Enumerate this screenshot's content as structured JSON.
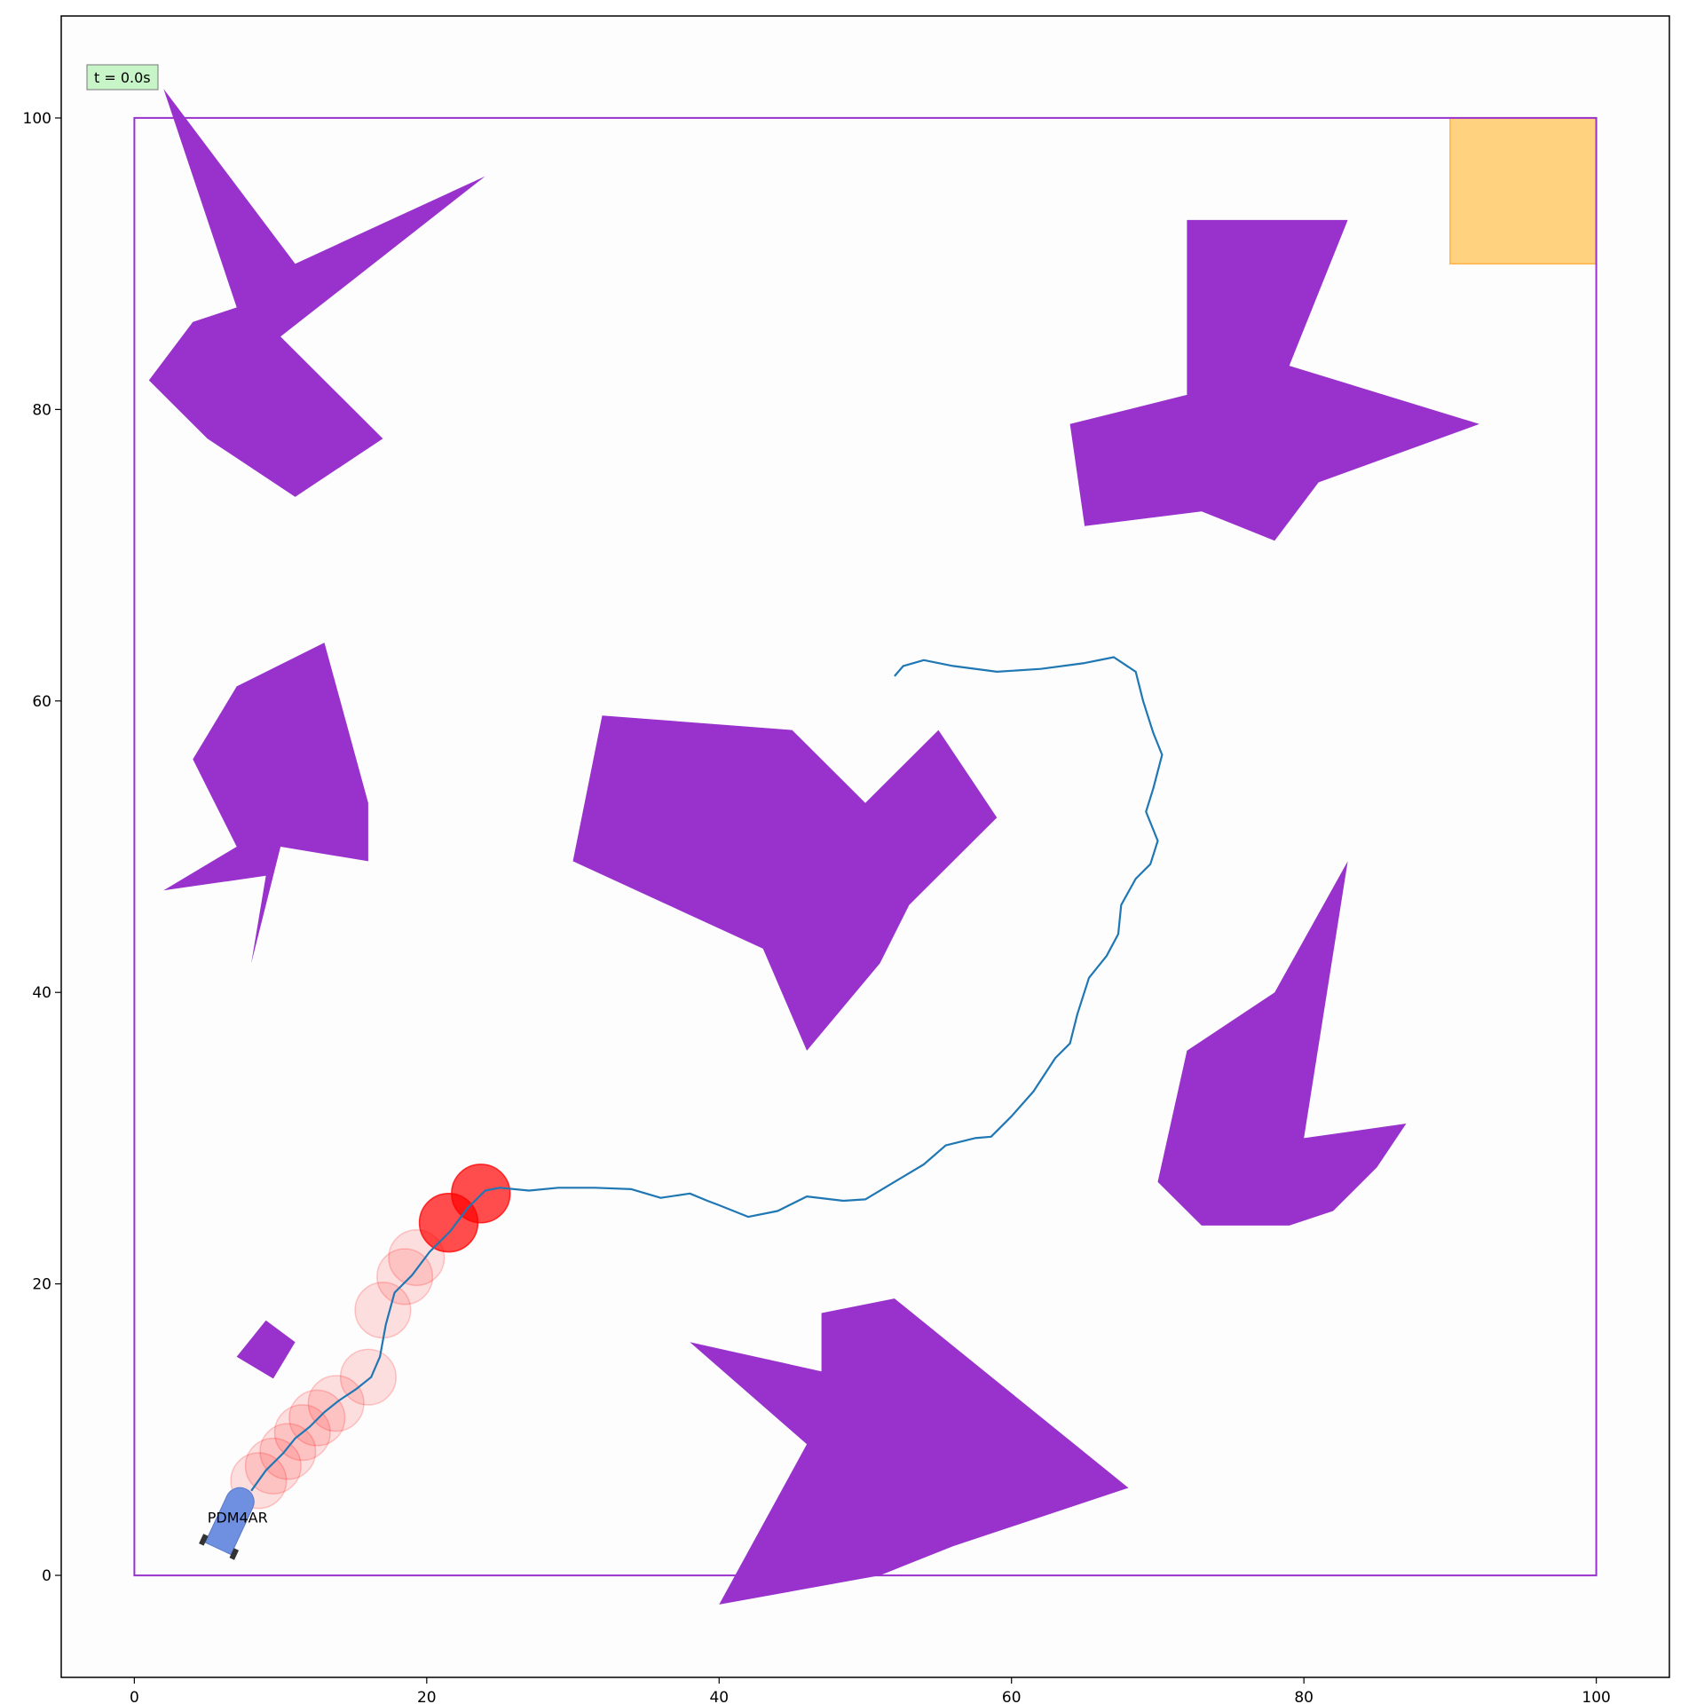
{
  "chart_data": {
    "type": "scatter",
    "xlim": [
      -5,
      105
    ],
    "ylim": [
      -7,
      107
    ],
    "xticks": [
      0,
      20,
      40,
      60,
      80,
      100
    ],
    "yticks": [
      0,
      20,
      40,
      60,
      80,
      100
    ],
    "grid": false,
    "colors": {
      "obstacle": "#9932cc",
      "boundary": "#9932cc",
      "goal": "#ffd280",
      "goal_edge": "#ffb347",
      "path": "#1f77b4",
      "dynamic_obstacle": "#ff0000",
      "vehicle": "#6f8fe0",
      "timebox": "#c8f5c8",
      "background": "#fdfdfd"
    },
    "boundary": [
      [
        0,
        0
      ],
      [
        100,
        0
      ],
      [
        100,
        100
      ],
      [
        0,
        100
      ]
    ],
    "goal": [
      [
        90,
        90
      ],
      [
        100,
        90
      ],
      [
        100,
        100
      ],
      [
        90,
        100
      ]
    ],
    "time_text": "t = 0.0s",
    "agent_name": "PDM4AR",
    "agent": {
      "x": 6.5,
      "y": 3.5,
      "heading_deg": 65
    },
    "obstacles": [
      [
        [
          2,
          102
        ],
        [
          11,
          90
        ],
        [
          24,
          96
        ],
        [
          10,
          85
        ],
        [
          17,
          78
        ],
        [
          11,
          74
        ],
        [
          5,
          78
        ],
        [
          1,
          82
        ],
        [
          4,
          86
        ],
        [
          7,
          87
        ]
      ],
      [
        [
          72,
          93
        ],
        [
          83,
          93
        ],
        [
          79,
          83
        ],
        [
          92,
          79
        ],
        [
          81,
          75
        ],
        [
          78,
          71
        ],
        [
          73,
          73
        ],
        [
          65,
          72
        ],
        [
          64,
          79
        ],
        [
          72,
          81
        ]
      ],
      [
        [
          13,
          64
        ],
        [
          16,
          53
        ],
        [
          16,
          49
        ],
        [
          10,
          50
        ],
        [
          8,
          42
        ],
        [
          9,
          48
        ],
        [
          2,
          47
        ],
        [
          7,
          50
        ],
        [
          4,
          56
        ],
        [
          7,
          61
        ]
      ],
      [
        [
          32,
          59
        ],
        [
          45,
          58
        ],
        [
          50,
          53
        ],
        [
          55,
          58
        ],
        [
          59,
          52
        ],
        [
          53,
          46
        ],
        [
          51,
          42
        ],
        [
          46,
          36
        ],
        [
          43,
          43
        ],
        [
          30,
          49
        ]
      ],
      [
        [
          83,
          49
        ],
        [
          78,
          40
        ],
        [
          72,
          36
        ],
        [
          70,
          27
        ],
        [
          73,
          24
        ],
        [
          79,
          24
        ],
        [
          82,
          25
        ],
        [
          85,
          28
        ],
        [
          87,
          31
        ],
        [
          80,
          30
        ]
      ],
      [
        [
          7,
          15
        ],
        [
          9,
          17.5
        ],
        [
          11,
          16
        ],
        [
          9.5,
          13.5
        ]
      ],
      [
        [
          38,
          16
        ],
        [
          47,
          14
        ],
        [
          47,
          18
        ],
        [
          52,
          19
        ],
        [
          68,
          6
        ],
        [
          56,
          2
        ],
        [
          51,
          0
        ],
        [
          40,
          -2
        ],
        [
          46,
          9
        ]
      ]
    ],
    "path": [
      [
        8.0,
        5.8
      ],
      [
        9.0,
        7.2
      ],
      [
        10.2,
        8.4
      ],
      [
        11.0,
        9.4
      ],
      [
        12.0,
        10.2
      ],
      [
        13.0,
        11.2
      ],
      [
        14.0,
        12.0
      ],
      [
        15.2,
        12.8
      ],
      [
        16.2,
        13.6
      ],
      [
        16.8,
        15.0
      ],
      [
        17.2,
        17.2
      ],
      [
        17.8,
        19.4
      ],
      [
        19.0,
        20.6
      ],
      [
        20.2,
        22.2
      ],
      [
        21.6,
        23.6
      ],
      [
        22.8,
        25.2
      ],
      [
        24.0,
        26.4
      ],
      [
        25.0,
        26.6
      ],
      [
        27.0,
        26.4
      ],
      [
        29.0,
        26.6
      ],
      [
        31.5,
        26.6
      ],
      [
        34.0,
        26.5
      ],
      [
        36.0,
        25.9
      ],
      [
        38.0,
        26.2
      ],
      [
        39.2,
        25.7
      ],
      [
        40.0,
        25.4
      ],
      [
        42.0,
        24.6
      ],
      [
        44.0,
        25.0
      ],
      [
        46.0,
        26.0
      ],
      [
        48.5,
        25.7
      ],
      [
        50.0,
        25.8
      ],
      [
        52.0,
        27.0
      ],
      [
        54.0,
        28.2
      ],
      [
        55.5,
        29.5
      ],
      [
        57.5,
        30.0
      ],
      [
        58.6,
        30.1
      ],
      [
        60.0,
        31.5
      ],
      [
        61.5,
        33.2
      ],
      [
        63.0,
        35.5
      ],
      [
        64.0,
        36.5
      ],
      [
        64.5,
        38.5
      ],
      [
        65.3,
        41.0
      ],
      [
        66.5,
        42.5
      ],
      [
        67.3,
        44.0
      ],
      [
        67.5,
        46.0
      ],
      [
        68.5,
        47.8
      ],
      [
        69.5,
        48.8
      ],
      [
        70.0,
        50.4
      ],
      [
        69.2,
        52.4
      ],
      [
        69.7,
        54.0
      ],
      [
        70.3,
        56.3
      ],
      [
        69.7,
        57.8
      ],
      [
        69.0,
        60.0
      ],
      [
        68.5,
        62.0
      ],
      [
        67.0,
        63.0
      ],
      [
        65.0,
        62.6
      ],
      [
        62.0,
        62.2
      ],
      [
        59.0,
        62.0
      ],
      [
        56.0,
        62.4
      ],
      [
        54.0,
        62.8
      ],
      [
        52.6,
        62.4
      ],
      [
        52.0,
        61.7
      ]
    ],
    "dynamic_obstacles": [
      {
        "x": 8.5,
        "y": 6.5,
        "r": 1.9,
        "alpha": 0.12
      },
      {
        "x": 9.5,
        "y": 7.5,
        "r": 1.9,
        "alpha": 0.12
      },
      {
        "x": 10.5,
        "y": 8.5,
        "r": 1.9,
        "alpha": 0.12
      },
      {
        "x": 11.5,
        "y": 9.8,
        "r": 1.9,
        "alpha": 0.12
      },
      {
        "x": 12.5,
        "y": 10.8,
        "r": 1.9,
        "alpha": 0.12
      },
      {
        "x": 13.8,
        "y": 11.8,
        "r": 1.9,
        "alpha": 0.12
      },
      {
        "x": 16.0,
        "y": 13.6,
        "r": 1.9,
        "alpha": 0.12
      },
      {
        "x": 17.0,
        "y": 18.2,
        "r": 1.9,
        "alpha": 0.12
      },
      {
        "x": 18.5,
        "y": 20.5,
        "r": 1.9,
        "alpha": 0.12
      },
      {
        "x": 19.3,
        "y": 21.8,
        "r": 1.9,
        "alpha": 0.12
      },
      {
        "x": 21.5,
        "y": 24.2,
        "r": 2.0,
        "alpha": 0.7
      },
      {
        "x": 23.7,
        "y": 26.2,
        "r": 2.0,
        "alpha": 0.7
      }
    ]
  }
}
